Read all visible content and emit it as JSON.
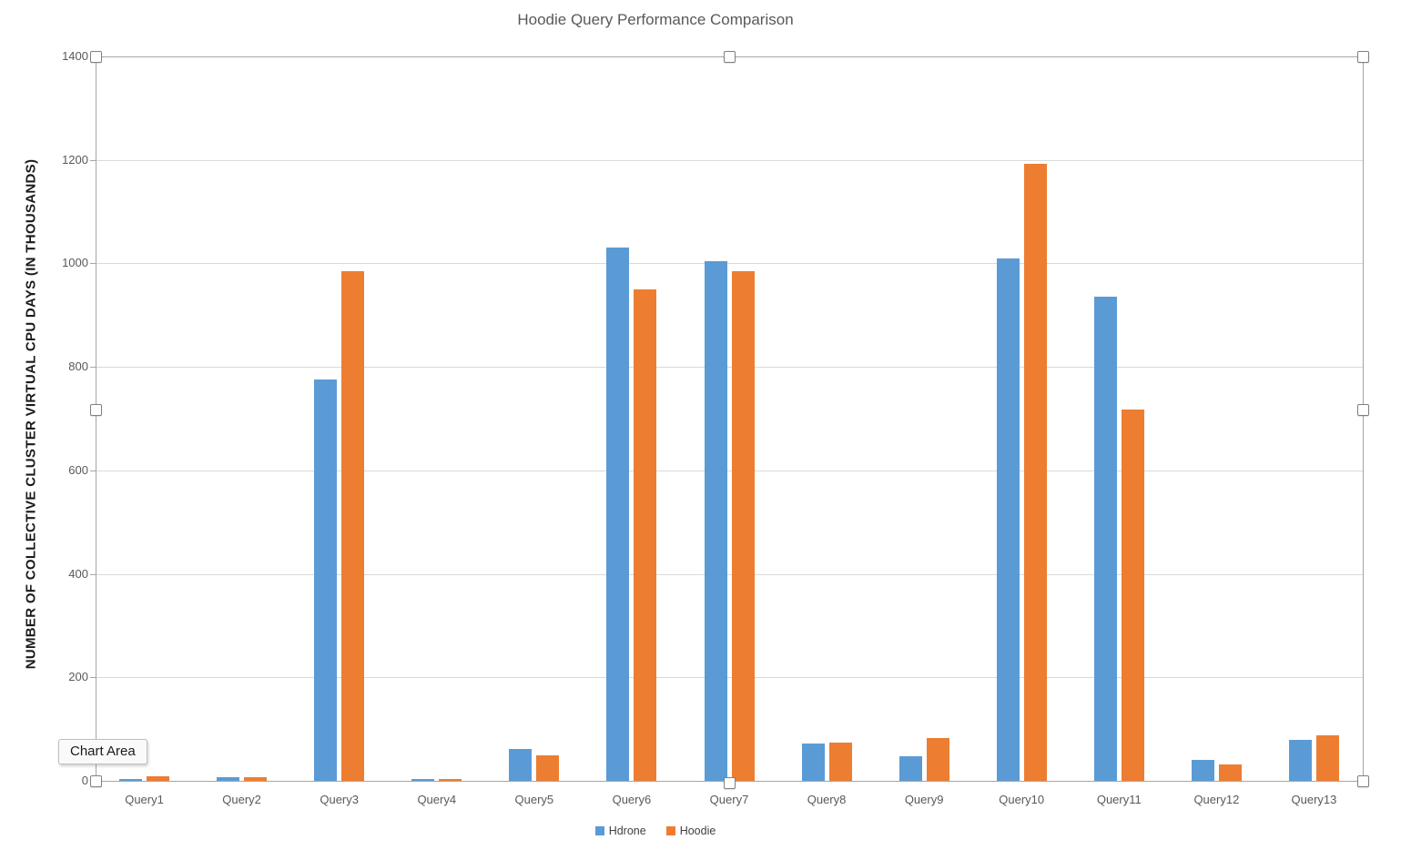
{
  "tooltip": {
    "label": "Chart Area"
  },
  "colors": {
    "series_hdrone": "#5B9BD5",
    "series_hoodie": "#ED7D31",
    "gridline": "#D9D9D9",
    "axis_line": "#A6A6A6",
    "title_text": "#595959",
    "tick_text": "#595959",
    "background": "#FFFFFF"
  },
  "selection": {
    "target": "Chart Area",
    "handle_count": 8
  },
  "chart_data": {
    "type": "bar",
    "title": "Hoodie Query Performance Comparison",
    "ylabel": "NUMBER OF COLLECTIVE CLUSTER VIRTUAL CPU DAYS (IN THOUSANDS)",
    "xlabel": "",
    "categories": [
      "Query1",
      "Query2",
      "Query3",
      "Query4",
      "Query5",
      "Query6",
      "Query7",
      "Query8",
      "Query9",
      "Query10",
      "Query11",
      "Query12",
      "Query13"
    ],
    "series": [
      {
        "name": "Hdrone",
        "color": "#5B9BD5",
        "values": [
          4,
          7,
          775,
          3,
          61,
          1030,
          1005,
          72,
          47,
          1010,
          936,
          41,
          79
        ]
      },
      {
        "name": "Hoodie",
        "color": "#ED7D31",
        "values": [
          8,
          7,
          985,
          4,
          49,
          950,
          985,
          73,
          83,
          1193,
          718,
          32,
          88
        ]
      }
    ],
    "ylim": [
      0,
      1400
    ],
    "y_ticks": [
      0,
      200,
      400,
      600,
      800,
      1000,
      1200,
      1400
    ],
    "grid": true,
    "legend_position": "bottom"
  }
}
